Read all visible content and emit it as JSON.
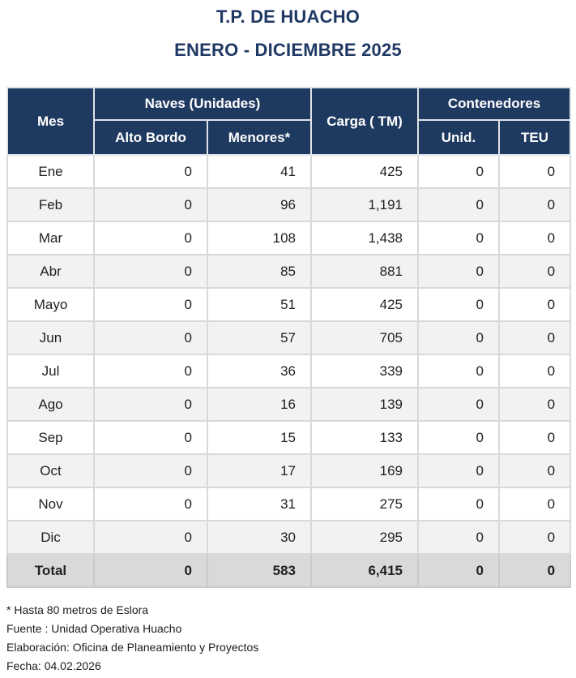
{
  "title": {
    "line1": "T.P. DE HUACHO",
    "line2": "ENERO - DICIEMBRE 2025"
  },
  "table": {
    "headers": {
      "mes": "Mes",
      "naves_group": "Naves (Unidades)",
      "alto_bordo": "Alto Bordo",
      "menores": "Menores*",
      "carga": "Carga ( TM)",
      "contenedores_group": "Contenedores",
      "unid": "Unid.",
      "teu": "TEU"
    },
    "rows": [
      {
        "mes": "Ene",
        "alto_bordo": "0",
        "menores": "41",
        "carga": "425",
        "unid": "0",
        "teu": "0"
      },
      {
        "mes": "Feb",
        "alto_bordo": "0",
        "menores": "96",
        "carga": "1,191",
        "unid": "0",
        "teu": "0"
      },
      {
        "mes": "Mar",
        "alto_bordo": "0",
        "menores": "108",
        "carga": "1,438",
        "unid": "0",
        "teu": "0"
      },
      {
        "mes": "Abr",
        "alto_bordo": "0",
        "menores": "85",
        "carga": "881",
        "unid": "0",
        "teu": "0"
      },
      {
        "mes": "Mayo",
        "alto_bordo": "0",
        "menores": "51",
        "carga": "425",
        "unid": "0",
        "teu": "0"
      },
      {
        "mes": "Jun",
        "alto_bordo": "0",
        "menores": "57",
        "carga": "705",
        "unid": "0",
        "teu": "0"
      },
      {
        "mes": "Jul",
        "alto_bordo": "0",
        "menores": "36",
        "carga": "339",
        "unid": "0",
        "teu": "0"
      },
      {
        "mes": "Ago",
        "alto_bordo": "0",
        "menores": "16",
        "carga": "139",
        "unid": "0",
        "teu": "0"
      },
      {
        "mes": "Sep",
        "alto_bordo": "0",
        "menores": "15",
        "carga": "133",
        "unid": "0",
        "teu": "0"
      },
      {
        "mes": "Oct",
        "alto_bordo": "0",
        "menores": "17",
        "carga": "169",
        "unid": "0",
        "teu": "0"
      },
      {
        "mes": "Nov",
        "alto_bordo": "0",
        "menores": "31",
        "carga": "275",
        "unid": "0",
        "teu": "0"
      },
      {
        "mes": "Dic",
        "alto_bordo": "0",
        "menores": "30",
        "carga": "295",
        "unid": "0",
        "teu": "0"
      }
    ],
    "total": {
      "mes": "Total",
      "alto_bordo": "0",
      "menores": "583",
      "carga": "6,415",
      "unid": "0",
      "teu": "0"
    }
  },
  "footnotes": [
    "* Hasta 80 metros de Eslora",
    "Fuente : Unidad Operativa Huacho",
    "Elaboración: Oficina de Planeamiento y Proyectos",
    "Fecha: 04.02.2026"
  ],
  "colors": {
    "header_bg": "#1f3a60",
    "title_text": "#1f3864",
    "stripe_row": "#f2f2f2",
    "total_row_bg": "#d9d9d9",
    "grid_border": "#d9d9d9"
  },
  "chart_data": {
    "type": "table",
    "title": "T.P. DE HUACHO — ENERO - DICIEMBRE 2025",
    "columns": [
      "Mes",
      "Naves (Unidades) Alto Bordo",
      "Naves (Unidades) Menores*",
      "Carga ( TM)",
      "Contenedores Unid.",
      "Contenedores TEU"
    ],
    "rows": [
      [
        "Ene",
        0,
        41,
        425,
        0,
        0
      ],
      [
        "Feb",
        0,
        96,
        1191,
        0,
        0
      ],
      [
        "Mar",
        0,
        108,
        1438,
        0,
        0
      ],
      [
        "Abr",
        0,
        85,
        881,
        0,
        0
      ],
      [
        "Mayo",
        0,
        51,
        425,
        0,
        0
      ],
      [
        "Jun",
        0,
        57,
        705,
        0,
        0
      ],
      [
        "Jul",
        0,
        36,
        339,
        0,
        0
      ],
      [
        "Ago",
        0,
        16,
        139,
        0,
        0
      ],
      [
        "Sep",
        0,
        15,
        133,
        0,
        0
      ],
      [
        "Oct",
        0,
        17,
        169,
        0,
        0
      ],
      [
        "Nov",
        0,
        31,
        275,
        0,
        0
      ],
      [
        "Dic",
        0,
        30,
        295,
        0,
        0
      ],
      [
        "Total",
        0,
        583,
        6415,
        0,
        0
      ]
    ],
    "footnote": "* Hasta 80 metros de Eslora"
  }
}
